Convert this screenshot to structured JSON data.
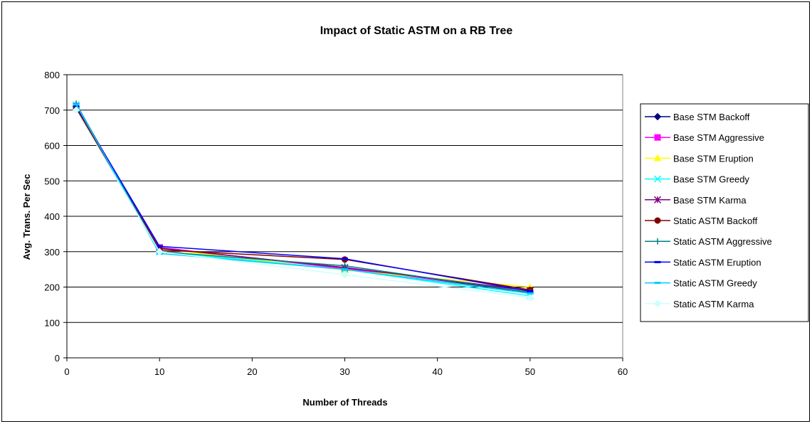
{
  "chart_data": {
    "type": "line",
    "title": "Impact of Static ASTM on a RB Tree",
    "xlabel": "Number of Threads",
    "ylabel": "Avg. Trans. Per Sec",
    "xlim": [
      0,
      60
    ],
    "ylim": [
      0,
      800
    ],
    "xticks": [
      0,
      10,
      20,
      30,
      40,
      50,
      60
    ],
    "yticks": [
      0,
      100,
      200,
      300,
      400,
      500,
      600,
      700,
      800
    ],
    "grid": "horizontal",
    "legend_position": "right",
    "x": [
      1,
      10,
      30,
      50
    ],
    "series": [
      {
        "name": "Base STM Backoff",
        "values": [
          710,
          310,
          255,
          185
        ],
        "color": "#000080",
        "marker": "diamond"
      },
      {
        "name": "Base STM Aggressive",
        "values": [
          712,
          312,
          252,
          190
        ],
        "color": "#ff00ff",
        "marker": "square"
      },
      {
        "name": "Base STM Eruption",
        "values": [
          708,
          308,
          248,
          200
        ],
        "color": "#ffff00",
        "marker": "triangle"
      },
      {
        "name": "Base STM Greedy",
        "values": [
          715,
          300,
          250,
          175
        ],
        "color": "#00ffff",
        "marker": "x"
      },
      {
        "name": "Base STM Karma",
        "values": [
          710,
          310,
          255,
          190
        ],
        "color": "#800080",
        "marker": "star"
      },
      {
        "name": "Static ASTM Backoff",
        "values": [
          705,
          305,
          278,
          192
        ],
        "color": "#800000",
        "marker": "circle"
      },
      {
        "name": "Static ASTM Aggressive",
        "values": [
          718,
          300,
          260,
          185
        ],
        "color": "#008080",
        "marker": "plus"
      },
      {
        "name": "Static ASTM Eruption",
        "values": [
          712,
          315,
          280,
          188
        ],
        "color": "#0000ff",
        "marker": "dash"
      },
      {
        "name": "Static ASTM Greedy",
        "values": [
          716,
          295,
          250,
          182
        ],
        "color": "#00ccff",
        "marker": "dash"
      },
      {
        "name": "Static ASTM Karma",
        "values": [
          700,
          300,
          235,
          170
        ],
        "color": "#ccffff",
        "marker": "diamond"
      }
    ]
  }
}
